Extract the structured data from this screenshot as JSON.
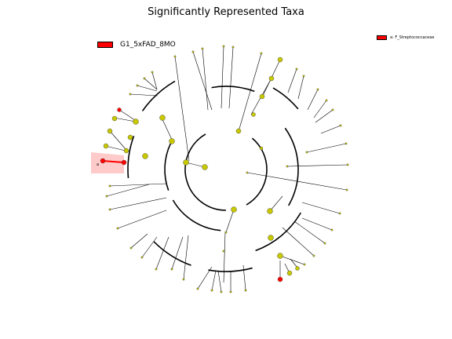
{
  "title": "Significantly Represented Taxa",
  "legend": {
    "group_label": "G1_5xFAD_8MO",
    "group_color": "#ff0000",
    "taxa_entries": [
      {
        "label": "a: F_Streptococcaceae",
        "color": "#ff0000"
      }
    ]
  },
  "highlight_letter": "a",
  "colors": {
    "node_default": "#c8c800",
    "node_enriched": "#ff0000",
    "clade_shade": "#ffb3b3",
    "branch": "#000000"
  }
}
